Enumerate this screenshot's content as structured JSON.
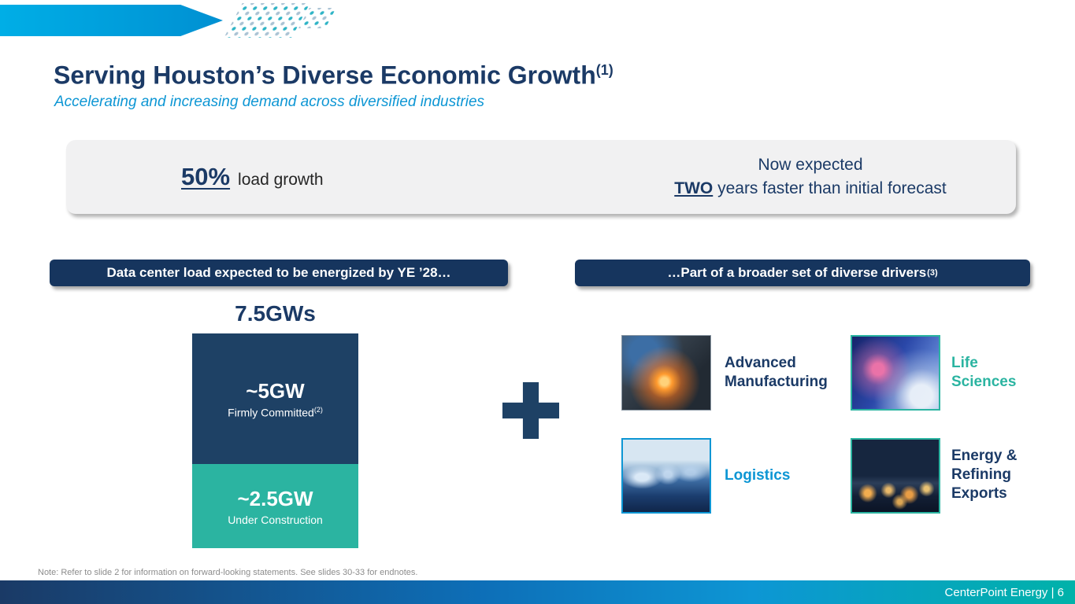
{
  "slide": {
    "title": "Serving Houston’s Diverse Economic Growth",
    "title_superscript": "(1)",
    "subtitle": "Accelerating and increasing demand across diversified industries",
    "note": "Note: Refer to slide 2 for information on forward-looking statements. See slides 30-33 for endnotes.",
    "footer": "CenterPoint Energy | 6"
  },
  "highlight_box": {
    "stat": "50%",
    "stat_label": "load growth",
    "right_line1": "Now expected",
    "right_emphasis": "TWO",
    "right_line2_rest": " years faster than initial forecast"
  },
  "left_panel": {
    "header": "Data center load expected to be energized by YE ’28…",
    "total_label": "7.5GWs",
    "segments": [
      {
        "value": "~5GW",
        "label": "Firmly Committed",
        "label_superscript": "(2)",
        "color": "#1E4165"
      },
      {
        "value": "~2.5GW",
        "label": "Under Construction",
        "color": "#2BB4A1"
      }
    ]
  },
  "right_panel": {
    "header": "…Part of a broader set of diverse drivers",
    "header_superscript": "(3)",
    "drivers": [
      {
        "label": "Advanced Manufacturing",
        "color": "#1B3A66",
        "image": "manufacturing-sparks-photo"
      },
      {
        "label": "Life Sciences",
        "color": "#2BB4A1",
        "image": "life-sciences-photo"
      },
      {
        "label": "Logistics",
        "color": "#0D96D4",
        "image": "trucks-photo"
      },
      {
        "label": "Energy & Refining Exports",
        "color": "#1B3A66",
        "image": "refinery-photo"
      }
    ]
  },
  "chart_data": {
    "type": "bar",
    "title": "Data center load expected to be energized by YE ’28",
    "categories": [
      "Data center load"
    ],
    "series": [
      {
        "name": "Firmly Committed",
        "values": [
          5
        ]
      },
      {
        "name": "Under Construction",
        "values": [
          2.5
        ]
      }
    ],
    "stacked": true,
    "total": 7.5,
    "total_label": "7.5GWs",
    "unit": "GW",
    "colors": [
      "#1E4165",
      "#2BB4A1"
    ],
    "ylim": [
      0,
      7.5
    ],
    "grid": false,
    "legend_position": "in-bar"
  },
  "colors": {
    "navy": "#1B3A66",
    "pill_navy": "#16355E",
    "teal": "#2BB4A1",
    "blue": "#0D96D4",
    "banner_blue": "#0099D8",
    "box_gray": "#F1F1F2"
  }
}
